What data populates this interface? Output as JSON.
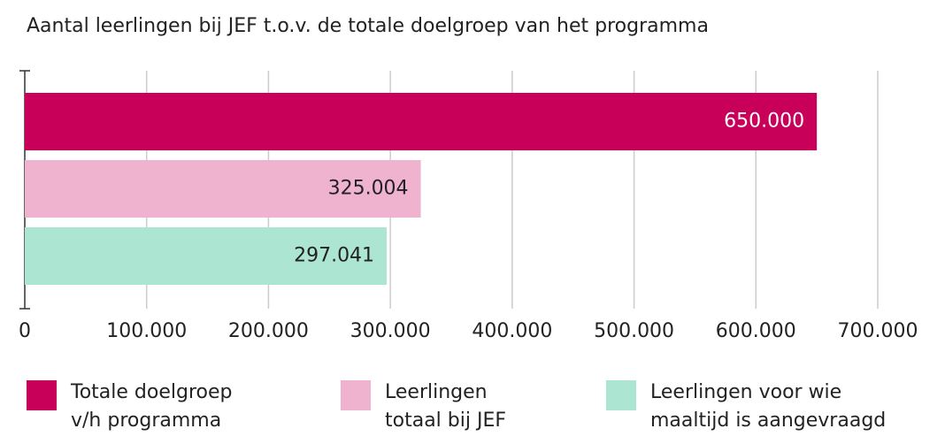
{
  "chart_data": {
    "type": "bar",
    "orientation": "horizontal",
    "title": "Aantal leerlingen bij JEF t.o.v. de totale doelgroep van het programma",
    "series": [
      {
        "name": "Totale doelgroep v/h programma",
        "color": "#c8005a",
        "label_color": "#ffffff",
        "values": [
          650000
        ],
        "value_labels": [
          "650.000"
        ]
      },
      {
        "name": "Leerlingen totaal bij JEF",
        "color": "#efb3cf",
        "label_color": "#222222",
        "values": [
          325004
        ],
        "value_labels": [
          "325.004"
        ]
      },
      {
        "name": "Leerlingen voor wie maaltijd is aangevraagd",
        "color": "#ade5d3",
        "label_color": "#222222",
        "values": [
          297041
        ],
        "value_labels": [
          "297.041"
        ]
      }
    ],
    "xlim": [
      0,
      700000
    ],
    "xticks": [
      0,
      {
        "value": 100000,
        "label": "100.000"
      },
      {
        "value": 200000,
        "label": "200.000"
      },
      {
        "value": 300000,
        "label": "300.000"
      },
      {
        "value": 400000,
        "label": "400.000"
      },
      {
        "value": 500000,
        "label": "500.000"
      },
      {
        "value": 600000,
        "label": "600.000"
      },
      {
        "value": 700000,
        "label": "700.000"
      }
    ],
    "grid": true,
    "legend": "bottom"
  }
}
